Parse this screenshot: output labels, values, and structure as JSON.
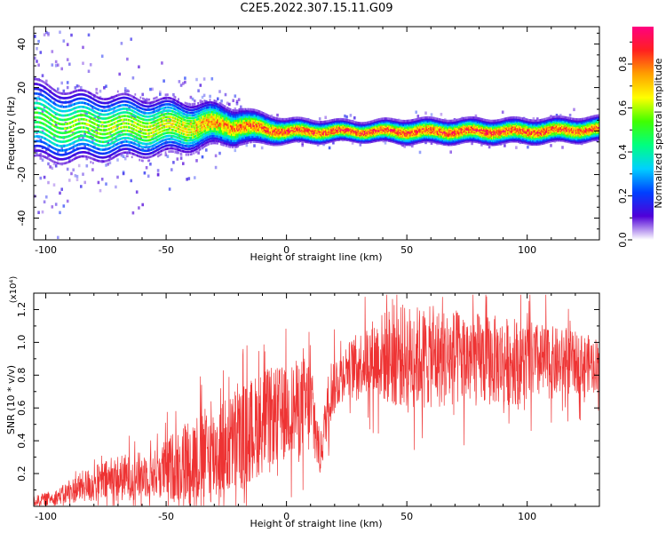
{
  "title": "C2E5.2022.307.15.11.G09",
  "chart_data": [
    {
      "type": "heatmap",
      "xlabel": "Height of straight line (km)",
      "ylabel": "Frequency (Hz)",
      "xlim": [
        -105,
        130
      ],
      "ylim": [
        -50,
        48
      ],
      "xticks": [
        -100,
        -50,
        0,
        50,
        100
      ],
      "xtick_labels": [
        "-100",
        "-50",
        "0",
        "50",
        "100"
      ],
      "yticks": [
        -40,
        -20,
        0,
        20,
        40
      ],
      "ytick_labels": [
        "-40",
        "-20",
        "0",
        "20",
        "40"
      ],
      "colorbar": {
        "label": "Normalized spectral amplitude",
        "range": [
          0,
          0.97
        ],
        "ticks": [
          0.0,
          0.2,
          0.4,
          0.6,
          0.8
        ],
        "tick_labels": [
          "0.0",
          "0.2",
          "0.4",
          "0.6",
          "0.8"
        ],
        "colormap": [
          "#ffffff",
          "#5000d8",
          "#0040ff",
          "#00d0ff",
          "#00ff80",
          "#40ff00",
          "#ffff00",
          "#ffa000",
          "#ff2020",
          "#ff0080"
        ]
      },
      "ridge": [
        {
          "x": -105,
          "freq": 5,
          "width": 9,
          "amp": 0.55
        },
        {
          "x": -90,
          "freq": 2,
          "width": 8,
          "amp": 0.62
        },
        {
          "x": -70,
          "freq": 2,
          "width": 7,
          "amp": 0.65
        },
        {
          "x": -50,
          "freq": 2,
          "width": 6,
          "amp": 0.7
        },
        {
          "x": -25,
          "freq": 3,
          "width": 4,
          "amp": 0.85
        },
        {
          "x": 0,
          "freq": 0,
          "width": 2.5,
          "amp": 0.92
        },
        {
          "x": 30,
          "freq": 0,
          "width": 2,
          "amp": 0.95
        },
        {
          "x": 50,
          "freq": 0,
          "width": 2.5,
          "amp": 0.93
        },
        {
          "x": 100,
          "freq": 0,
          "width": 2.5,
          "amp": 0.93
        },
        {
          "x": 130,
          "freq": 1,
          "width": 2.5,
          "amp": 0.9
        }
      ]
    },
    {
      "type": "line",
      "xlabel": "Height of straight line (km)",
      "ylabel": "SNR (10 * v/v)",
      "y_multiplier_label": "(x10⁴)",
      "xlim": [
        -105,
        130
      ],
      "ylim": [
        0,
        1.3
      ],
      "xticks": [
        -100,
        -50,
        0,
        50,
        100
      ],
      "xtick_labels": [
        "-100",
        "-50",
        "0",
        "50",
        "100"
      ],
      "yticks": [
        0.2,
        0.4,
        0.6,
        0.8,
        1.0,
        1.2
      ],
      "ytick_labels": [
        "0.2",
        "0.4",
        "0.6",
        "0.8",
        "1.0",
        "1.2"
      ],
      "series": [
        {
          "color": "#ee3333",
          "envelope": [
            {
              "x": -105,
              "mean": 0.03,
              "spread": 0.04
            },
            {
              "x": -95,
              "mean": 0.06,
              "spread": 0.06
            },
            {
              "x": -85,
              "mean": 0.12,
              "spread": 0.12
            },
            {
              "x": -70,
              "mean": 0.17,
              "spread": 0.18
            },
            {
              "x": -55,
              "mean": 0.2,
              "spread": 0.18
            },
            {
              "x": -40,
              "mean": 0.28,
              "spread": 0.35
            },
            {
              "x": -30,
              "mean": 0.32,
              "spread": 0.38
            },
            {
              "x": -20,
              "mean": 0.4,
              "spread": 0.4
            },
            {
              "x": -10,
              "mean": 0.52,
              "spread": 0.4
            },
            {
              "x": 0,
              "mean": 0.58,
              "spread": 0.35
            },
            {
              "x": 10,
              "mean": 0.62,
              "spread": 0.4
            },
            {
              "x": 14,
              "mean": 0.3,
              "spread": 0.15
            },
            {
              "x": 18,
              "mean": 0.7,
              "spread": 0.25
            },
            {
              "x": 25,
              "mean": 0.85,
              "spread": 0.18
            },
            {
              "x": 35,
              "mean": 0.9,
              "spread": 0.3
            },
            {
              "x": 45,
              "mean": 0.92,
              "spread": 0.4
            },
            {
              "x": 70,
              "mean": 0.9,
              "spread": 0.38
            },
            {
              "x": 100,
              "mean": 0.88,
              "spread": 0.32
            },
            {
              "x": 130,
              "mean": 0.87,
              "spread": 0.2
            }
          ]
        }
      ]
    }
  ]
}
